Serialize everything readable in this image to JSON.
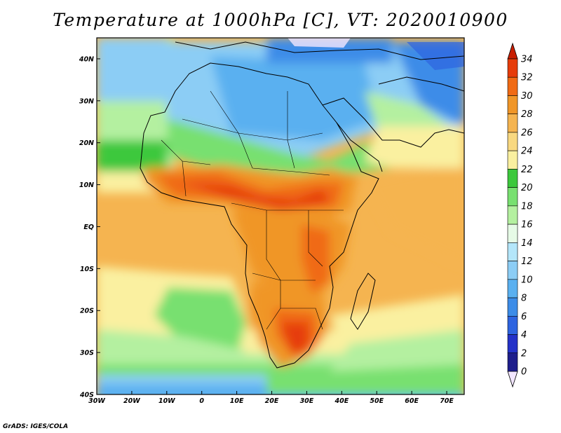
{
  "title": "Temperature at 1000hPa [C], VT: 2020010900",
  "credit": "GrADS: IGES/COLA",
  "map": {
    "lon_range": [
      -30,
      75
    ],
    "lat_range": [
      -40,
      45
    ],
    "lon_ticks": [
      {
        "value": -30,
        "label": "30W"
      },
      {
        "value": -20,
        "label": "20W"
      },
      {
        "value": -10,
        "label": "10W"
      },
      {
        "value": 0,
        "label": "0"
      },
      {
        "value": 10,
        "label": "10E"
      },
      {
        "value": 20,
        "label": "20E"
      },
      {
        "value": 30,
        "label": "30E"
      },
      {
        "value": 40,
        "label": "40E"
      },
      {
        "value": 50,
        "label": "50E"
      },
      {
        "value": 60,
        "label": "60E"
      },
      {
        "value": 70,
        "label": "70E"
      }
    ],
    "lat_ticks": [
      {
        "value": 40,
        "label": "40N"
      },
      {
        "value": 30,
        "label": "30N"
      },
      {
        "value": 20,
        "label": "20N"
      },
      {
        "value": 10,
        "label": "10N"
      },
      {
        "value": 0,
        "label": "EQ"
      },
      {
        "value": -10,
        "label": "10S"
      },
      {
        "value": -20,
        "label": "20S"
      },
      {
        "value": -30,
        "label": "30S"
      },
      {
        "value": -40,
        "label": "40S"
      }
    ]
  },
  "colorbar": {
    "labels": [
      "34",
      "32",
      "30",
      "28",
      "26",
      "24",
      "22",
      "20",
      "18",
      "16",
      "14",
      "12",
      "10",
      "8",
      "6",
      "4",
      "2",
      "0"
    ],
    "colors": [
      "#f2e6ff",
      "#1e1e8c",
      "#2432c8",
      "#2e64e0",
      "#3c8ce8",
      "#5ab0f0",
      "#8ccdf5",
      "#b4e6fa",
      "#e6fae6",
      "#b4f0a0",
      "#78e070",
      "#3cc83c",
      "#faf0a0",
      "#f8d880",
      "#f5b450",
      "#f09628",
      "#f06a14",
      "#e63c0a",
      "#c81e00"
    ]
  }
}
